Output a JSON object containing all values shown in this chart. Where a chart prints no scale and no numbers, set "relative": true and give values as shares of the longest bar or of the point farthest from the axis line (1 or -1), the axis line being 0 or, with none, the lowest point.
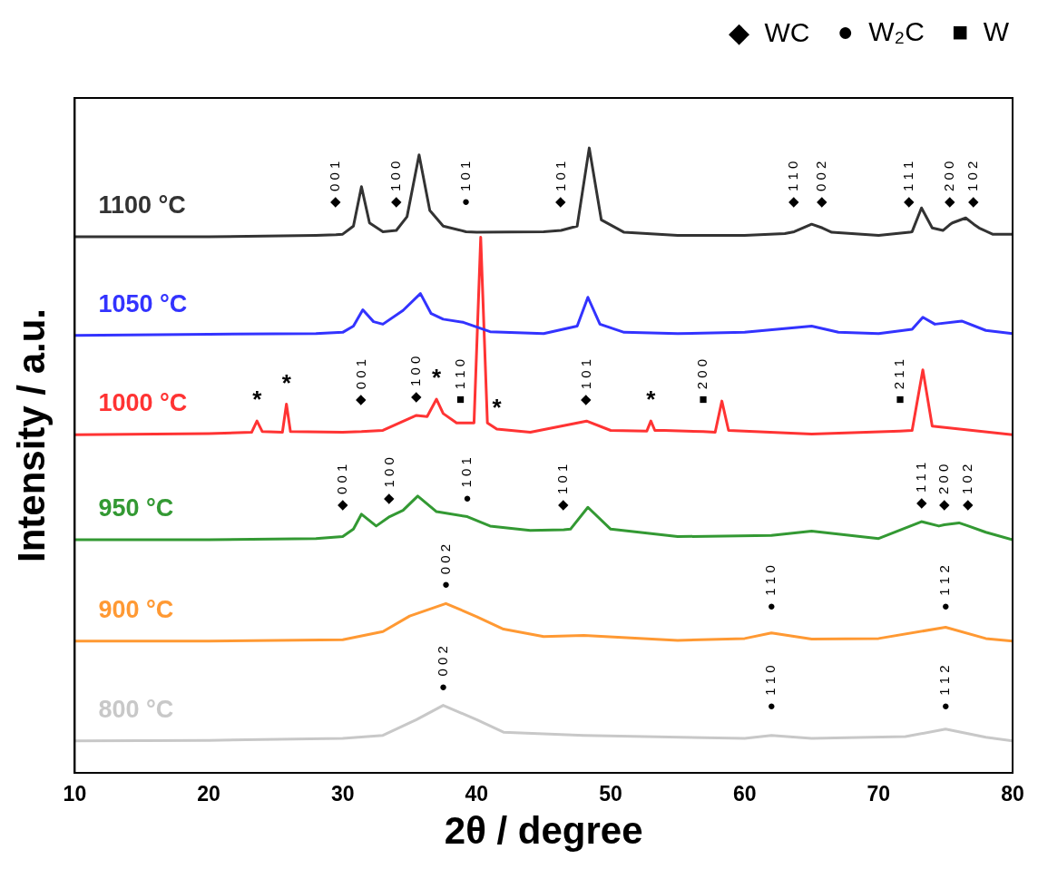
{
  "chart_data": {
    "type": "line",
    "relative": true,
    "xlabel": "2θ / degree",
    "ylabel": "Intensity / a.u.",
    "xlim": [
      10,
      80
    ],
    "xticks": [
      10,
      20,
      30,
      40,
      50,
      60,
      70,
      80
    ],
    "grid": false,
    "legend": false,
    "marker": "none",
    "line_style": "solid",
    "series": [
      {
        "name": "1100 °C",
        "color": "#333333",
        "x": [
          10,
          20,
          28,
          29.5,
          30,
          30.8,
          31.4,
          32,
          33,
          34,
          34.8,
          35.7,
          36.5,
          37.5,
          39.2,
          40,
          45,
          46.3,
          47.5,
          48.4,
          49.3,
          51,
          55,
          60,
          63,
          63.7,
          65,
          65.8,
          66.5,
          70,
          72.3,
          72.5,
          73.2,
          74,
          74.8,
          75.3,
          75.5,
          76.5,
          77.1,
          77.5,
          78.5,
          80
        ],
        "values": [
          0.858,
          0.858,
          0.86,
          0.861,
          0.862,
          0.875,
          0.938,
          0.88,
          0.866,
          0.868,
          0.89,
          0.989,
          0.9,
          0.875,
          0.866,
          0.865,
          0.866,
          0.868,
          0.875,
          1,
          0.885,
          0.865,
          0.86,
          0.86,
          0.863,
          0.866,
          0.878,
          0.872,
          0.865,
          0.86,
          0.865,
          0.866,
          0.904,
          0.872,
          0.868,
          0.877,
          0.88,
          0.888,
          0.878,
          0.872,
          0.862,
          0.862
        ]
      },
      {
        "name": "1050 °C",
        "color": "#3333ff",
        "x": [
          10,
          20,
          28,
          30,
          30.8,
          31.5,
          32.3,
          33,
          34.5,
          35.8,
          36.6,
          37.5,
          39,
          41,
          45,
          47.5,
          48.3,
          49.2,
          51,
          55,
          60,
          65,
          67,
          70,
          72.5,
          73.3,
          74.2,
          76.2,
          78,
          80
        ],
        "values": [
          0.7,
          0.702,
          0.703,
          0.705,
          0.715,
          0.741,
          0.722,
          0.718,
          0.74,
          0.767,
          0.735,
          0.726,
          0.721,
          0.706,
          0.703,
          0.715,
          0.761,
          0.718,
          0.705,
          0.703,
          0.705,
          0.715,
          0.705,
          0.703,
          0.71,
          0.729,
          0.718,
          0.723,
          0.708,
          0.703
        ]
      },
      {
        "name": "1000 °C",
        "color": "#ff3333",
        "x": [
          10,
          20,
          23.2,
          23.6,
          24,
          25.5,
          25.8,
          26.1,
          30,
          31.4,
          33,
          35.5,
          36.3,
          37,
          37.5,
          38.5,
          38.8,
          39.8,
          40.3,
          40.8,
          41.5,
          44,
          48.2,
          50,
          52.7,
          53,
          53.3,
          54,
          56.9,
          57.8,
          58.3,
          58.8,
          65,
          71.6,
          72.5,
          73.3,
          74,
          80
        ],
        "values": [
          0.541,
          0.543,
          0.545,
          0.563,
          0.546,
          0.545,
          0.59,
          0.546,
          0.545,
          0.546,
          0.548,
          0.572,
          0.57,
          0.598,
          0.575,
          0.56,
          0.56,
          0.56,
          0.857,
          0.56,
          0.55,
          0.545,
          0.563,
          0.548,
          0.547,
          0.563,
          0.548,
          0.548,
          0.546,
          0.545,
          0.595,
          0.548,
          0.542,
          0.547,
          0.548,
          0.645,
          0.555,
          0.541
        ]
      },
      {
        "name": "950 °C",
        "color": "#339933",
        "x": [
          10,
          20,
          28,
          30,
          30.8,
          31.4,
          32.5,
          33.5,
          34.5,
          35.6,
          37,
          39.3,
          41,
          44,
          46.5,
          47,
          48.3,
          50,
          55,
          62,
          65,
          70,
          73.2,
          74.5,
          74.9,
          76,
          76.7,
          78,
          80
        ],
        "values": [
          0.373,
          0.373,
          0.375,
          0.378,
          0.39,
          0.414,
          0.395,
          0.41,
          0.42,
          0.443,
          0.418,
          0.41,
          0.395,
          0.388,
          0.389,
          0.39,
          0.425,
          0.39,
          0.378,
          0.38,
          0.387,
          0.375,
          0.402,
          0.395,
          0.397,
          0.4,
          0.395,
          0.385,
          0.373
        ]
      },
      {
        "name": "900 °C",
        "color": "#ff9933",
        "x": [
          10,
          20,
          30,
          33,
          35,
          37.7,
          40,
          42,
          45,
          48,
          55,
          60,
          62,
          65,
          70,
          75,
          78,
          80
        ],
        "values": [
          0.211,
          0.211,
          0.213,
          0.226,
          0.251,
          0.271,
          0.25,
          0.23,
          0.218,
          0.22,
          0.212,
          0.215,
          0.224,
          0.214,
          0.215,
          0.233,
          0.215,
          0.211
        ]
      },
      {
        "name": "800 °C",
        "color": "#c8c8c8",
        "x": [
          10,
          20,
          30,
          33,
          35.5,
          37.5,
          40,
          42,
          48,
          60,
          62,
          65,
          72,
          75,
          78,
          80
        ],
        "values": [
          0.051,
          0.052,
          0.055,
          0.06,
          0.085,
          0.108,
          0.085,
          0.065,
          0.06,
          0.055,
          0.06,
          0.055,
          0.058,
          0.07,
          0.057,
          0.051
        ]
      }
    ],
    "annotations": [
      "◆  WC",
      "●  W₂C",
      "■  W",
      {
        "text": "◆ 0 0 1",
        "x": 29.5,
        "y": 0.861
      },
      {
        "text": "◆ 1 0 0",
        "x": 34,
        "y": 0.868
      },
      {
        "text": "● 1 0 1",
        "x": 39.2,
        "y": 0.866
      },
      {
        "text": "◆ 1 0 1",
        "x": 46.3,
        "y": 0.868
      },
      {
        "text": "◆ 1 1 0",
        "x": 63.7,
        "y": 0.866
      },
      {
        "text": "◆ 0 0 2",
        "x": 65.8,
        "y": 0.872
      },
      {
        "text": "◆ 1 1 1",
        "x": 72.3,
        "y": 0.865
      },
      {
        "text": "◆ 2 0 0",
        "x": 75.3,
        "y": 0.877
      },
      {
        "text": "◆ 1 0 2",
        "x": 77.1,
        "y": 0.878
      },
      {
        "text": "*",
        "x": 23.6,
        "y": 0.563
      },
      {
        "text": "*",
        "x": 25.8,
        "y": 0.59
      },
      {
        "text": "◆ 0 0 1",
        "x": 31.4,
        "y": 0.546
      },
      {
        "text": "◆ 1 0 0",
        "x": 35.5,
        "y": 0.572
      },
      {
        "text": "*",
        "x": 37,
        "y": 0.598
      },
      {
        "text": "■ 1 1 0",
        "x": 38.8,
        "y": 0.56
      },
      {
        "text": "*",
        "x": 41.5,
        "y": 0.55
      },
      {
        "text": "◆ 1 0 1",
        "x": 48.2,
        "y": 0.563
      },
      {
        "text": "*",
        "x": 53,
        "y": 0.563
      },
      {
        "text": "■ 2 0 0",
        "x": 56.9,
        "y": 0.546
      },
      {
        "text": "■ 2 1 1",
        "x": 71.6,
        "y": 0.547
      },
      {
        "text": "◆ 0 0 1",
        "x": 30,
        "y": 0.378
      },
      {
        "text": "◆ 1 0 0",
        "x": 33.5,
        "y": 0.41
      },
      {
        "text": "● 1 0 1",
        "x": 39.3,
        "y": 0.41
      },
      {
        "text": "◆ 1 0 1",
        "x": 46.5,
        "y": 0.389
      },
      {
        "text": "◆ 1 1 1",
        "x": 73.2,
        "y": 0.402
      },
      {
        "text": "◆ 2 0 0",
        "x": 74.9,
        "y": 0.397
      },
      {
        "text": "◆ 1 0 2",
        "x": 76.7,
        "y": 0.395
      },
      {
        "text": "● 0 0 2",
        "x": 37.7,
        "y": 0.271
      },
      {
        "text": "● 1 1 0",
        "x": 62,
        "y": 0.224
      },
      {
        "text": "● 1 1 2",
        "x": 75,
        "y": 0.233
      },
      {
        "text": "● 0 0 2",
        "x": 37.5,
        "y": 0.108
      },
      {
        "text": "● 1 1 0",
        "x": 62,
        "y": 0.06
      },
      {
        "text": "● 1 1 2",
        "x": 75,
        "y": 0.07
      }
    ]
  }
}
